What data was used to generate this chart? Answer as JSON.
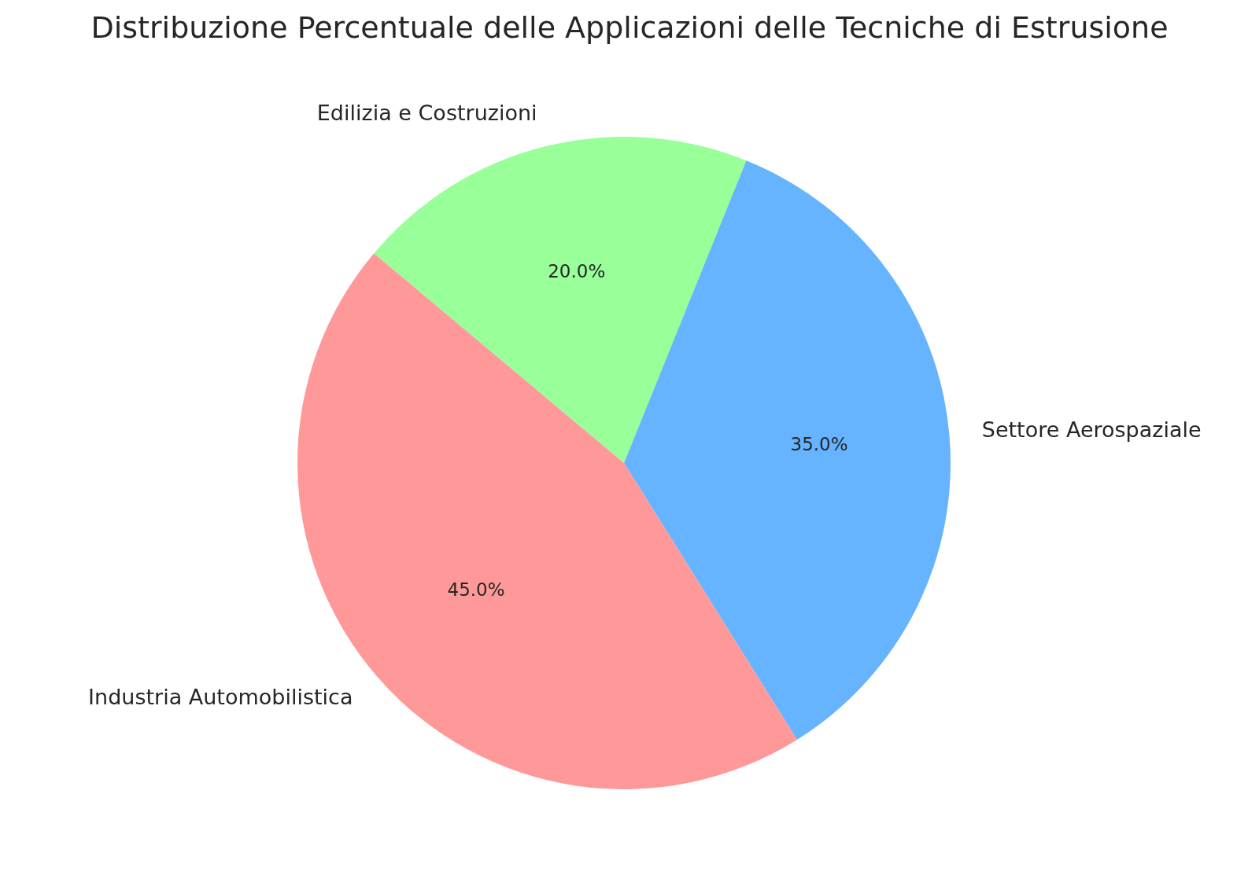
{
  "chart_data": {
    "type": "pie",
    "title": "Distribuzione Percentuale delle Applicazioni delle Tecniche di Estrusione",
    "categories": [
      "Industria Automobilistica",
      "Settore Aerospaziale",
      "Edilizia e Costruzioni"
    ],
    "values": [
      45,
      35,
      20
    ],
    "colors": [
      "#ff9999",
      "#66b3ff",
      "#99ff99"
    ],
    "value_labels": [
      "45.0%",
      "35.0%",
      "20.0%"
    ],
    "legend": false
  }
}
